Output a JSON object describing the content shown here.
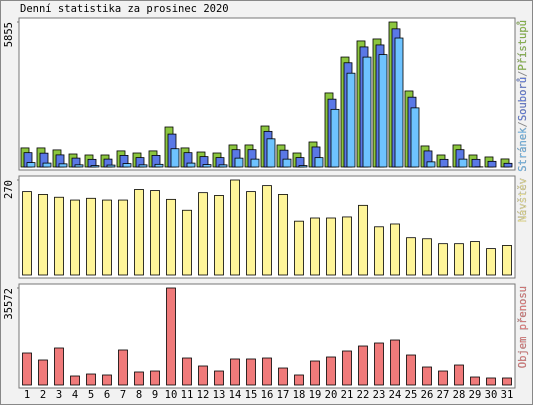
{
  "chart_data": [
    {
      "type": "bar3d",
      "title": "Denní statistika za prosinec 2020",
      "legend_separator": "/",
      "ylim": [
        0,
        5855
      ],
      "yticks": [
        5855
      ],
      "series": [
        {
          "name": "Přístupů",
          "color": "#8cc63f",
          "values": [
            770,
            770,
            690,
            525,
            485,
            485,
            650,
            565,
            650,
            1615,
            770,
            605,
            565,
            890,
            890,
            1655,
            890,
            565,
            1010,
            2990,
            4440,
            5090,
            5170,
            5855,
            3070,
            850,
            485,
            890,
            485,
            405,
            325
          ]
        },
        {
          "name": "Souborů",
          "color": "#5a78e6",
          "values": [
            700,
            680,
            610,
            480,
            430,
            440,
            590,
            500,
            590,
            1450,
            700,
            540,
            500,
            820,
            820,
            1560,
            800,
            500,
            930,
            2860,
            4330,
            4970,
            5050,
            5700,
            2940,
            770,
            430,
            820,
            430,
            350,
            270
          ]
        },
        {
          "name": "Stránek",
          "color": "#6ec3ff",
          "values": [
            420,
            400,
            370,
            330,
            300,
            320,
            380,
            330,
            350,
            980,
            400,
            340,
            330,
            600,
            560,
            1380,
            560,
            300,
            620,
            2570,
            4030,
            4680,
            4780,
            5450,
            2630,
            450,
            250,
            560,
            250,
            210,
            150
          ]
        }
      ]
    },
    {
      "type": "bar",
      "ylim": [
        0,
        270
      ],
      "yticks": [
        270
      ],
      "series": [
        {
          "name": "Návštěv",
          "color": "#fff59a",
          "values": [
            237,
            229,
            221,
            213,
            218,
            213,
            213,
            243,
            240,
            215,
            184,
            234,
            226,
            270,
            237,
            254,
            229,
            153,
            162,
            162,
            165,
            198,
            137,
            145,
            106,
            103,
            89,
            89,
            95,
            75,
            84
          ]
        }
      ]
    },
    {
      "type": "bar",
      "ylim": [
        0,
        35572
      ],
      "yticks": [
        35572
      ],
      "categories": [
        "1",
        "2",
        "3",
        "4",
        "5",
        "6",
        "7",
        "8",
        "9",
        "10",
        "11",
        "12",
        "13",
        "14",
        "15",
        "16",
        "17",
        "18",
        "19",
        "20",
        "21",
        "22",
        "23",
        "24",
        "25",
        "26",
        "27",
        "28",
        "29",
        "30",
        "31"
      ],
      "highlight_categories": [
        4,
        5,
        11,
        12,
        18,
        19,
        25,
        26
      ],
      "highlight_color": "#6aaa2a",
      "series": [
        {
          "name": "Objem přenosu",
          "color": "#f07a7a",
          "values": [
            11735,
            9170,
            13570,
            3300,
            4030,
            3670,
            12840,
            4770,
            5130,
            35572,
            9900,
            6970,
            5130,
            9540,
            9540,
            9900,
            6230,
            3670,
            8800,
            10270,
            12470,
            14300,
            15400,
            16500,
            11000,
            6600,
            5130,
            7330,
            2930,
            2570,
            2570
          ]
        }
      ]
    }
  ]
}
